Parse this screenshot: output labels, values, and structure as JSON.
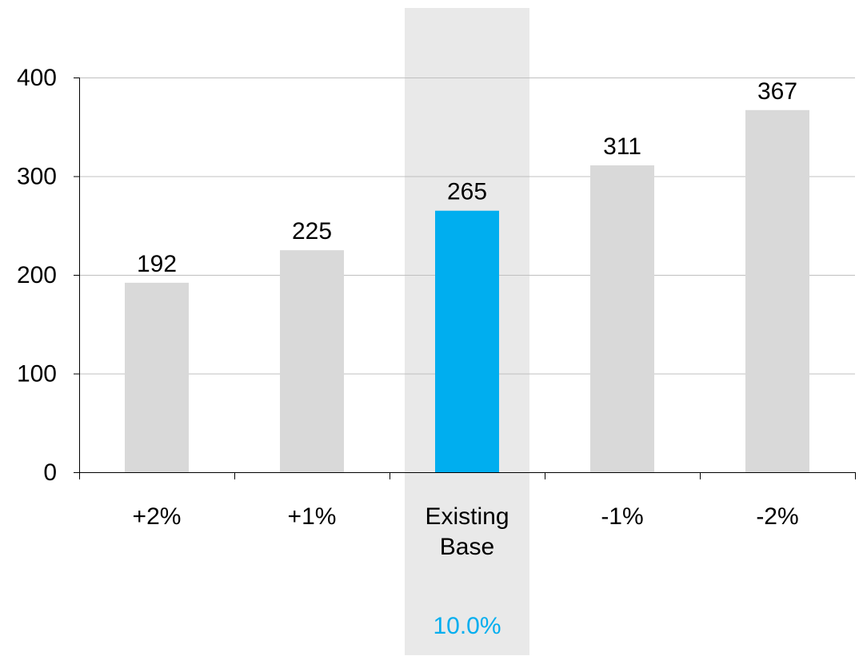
{
  "chart_data": {
    "type": "bar",
    "title": "",
    "xlabel": "",
    "ylabel": "",
    "categories": [
      [
        "+2%"
      ],
      [
        "+1%"
      ],
      [
        "Existing",
        "Base"
      ],
      [
        "-1%"
      ],
      [
        "-2%"
      ]
    ],
    "values": [
      192,
      225,
      265,
      311,
      367
    ],
    "ylim": [
      0,
      400
    ],
    "yticks": [
      0,
      100,
      200,
      300,
      400
    ],
    "grid": true,
    "highlight_index": 2,
    "highlight_note": "10.0%",
    "colors": {
      "bar": "#d9d9d9",
      "highlight_bar": "#00aeef",
      "highlight_band": "#e9e9e9",
      "grid": "#c0c0c0",
      "axis": "#000000",
      "text": "#000000",
      "note": "#00aeef"
    }
  }
}
